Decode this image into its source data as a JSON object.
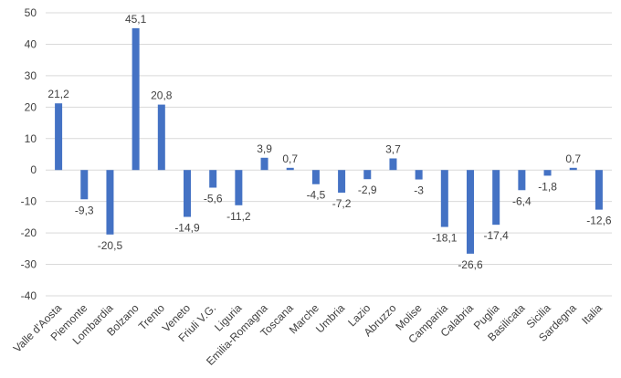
{
  "chart_data": {
    "type": "bar",
    "categories": [
      "Valle d'Aosta",
      "Piemonte",
      "Lombardia",
      "Bolzano",
      "Trento",
      "Veneto",
      "Friuli V.G.",
      "Liguria",
      "Emilia-Romagna",
      "Toscana",
      "Marche",
      "Umbria",
      "Lazio",
      "Abruzzo",
      "Molise",
      "Campania",
      "Calabria",
      "Puglia",
      "Basilicata",
      "Sicilia",
      "Sardegna",
      "Italia"
    ],
    "values": [
      21.2,
      -9.3,
      -20.5,
      45.1,
      20.8,
      -14.9,
      -5.6,
      -11.2,
      3.9,
      0.7,
      -4.5,
      -7.2,
      -2.9,
      3.7,
      -3,
      -18.1,
      -26.6,
      -17.4,
      -6.4,
      -1.8,
      0.7,
      -12.6
    ],
    "data_labels": [
      "21,2",
      "-9,3",
      "-20,5",
      "45,1",
      "20,8",
      "-14,9",
      "-5,6",
      "-11,2",
      "3,9",
      "0,7",
      "-4,5",
      "-7,2",
      "-2,9",
      "3,7",
      "-3",
      "-18,1",
      "-26,6",
      "-17,4",
      "-6,4",
      "-1,8",
      "0,7",
      "-12,6"
    ],
    "ylim": [
      -40,
      50
    ],
    "yticks": [
      -40,
      -30,
      -20,
      -10,
      0,
      10,
      20,
      30,
      40,
      50
    ],
    "grid": true,
    "legend": "none",
    "bar_color": "#4472C4",
    "grid_color": "#D9D9D9",
    "text_color": "#404040"
  }
}
